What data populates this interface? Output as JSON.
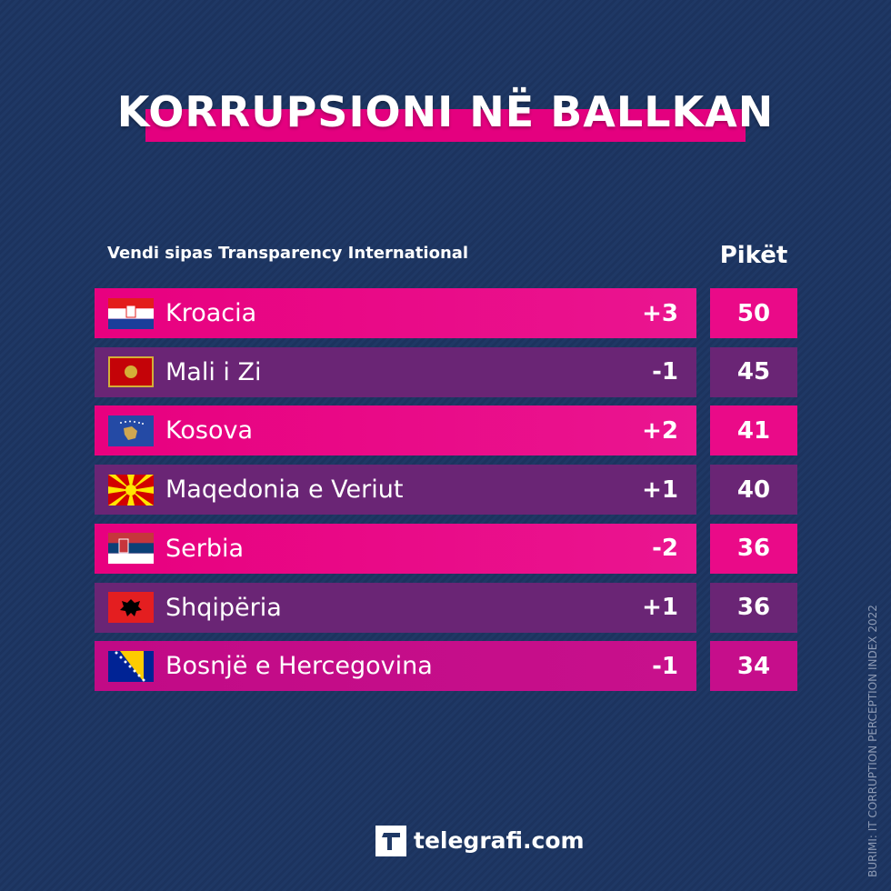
{
  "title": "KORRUPSIONI NË BALLKAN",
  "table": {
    "header": [
      "Vendi sipas Transparency International",
      "Pikët"
    ],
    "rows": [
      {
        "country": "Kroacia",
        "change": "+3",
        "score": 50
      },
      {
        "country": "Mali i Zi",
        "change": "-1",
        "score": 45
      },
      {
        "country": "Kosova",
        "change": "+2",
        "score": 41
      },
      {
        "country": "Maqedonia e Veriut",
        "change": "+1",
        "score": 40
      },
      {
        "country": "Serbia",
        "change": "-2",
        "score": 36
      },
      {
        "country": "Shqipëria",
        "change": "+1",
        "score": 36
      },
      {
        "country": "Bosnjë e Hercegovina",
        "change": "-1",
        "score": 34
      }
    ]
  },
  "brand": "telegrafi.com",
  "source": "BURIMI: IT CORRUPTION PERCEPTION INDEX 2022"
}
